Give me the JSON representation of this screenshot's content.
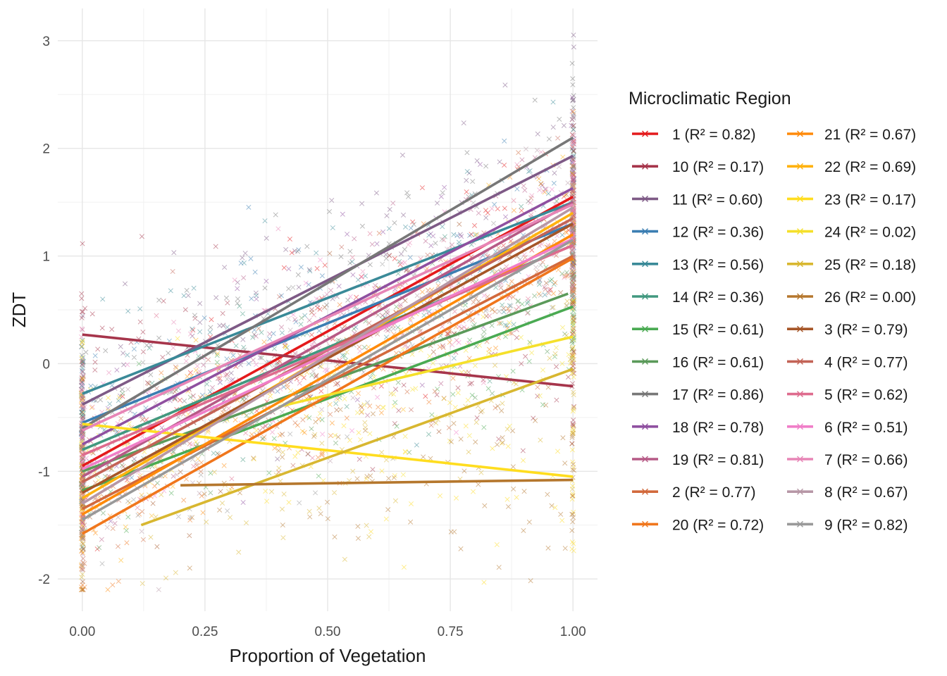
{
  "chart_data": {
    "type": "scatter",
    "title": "",
    "xlabel": "Proportion of Vegetation",
    "ylabel": "ZDT",
    "xlim": [
      -0.05,
      1.05
    ],
    "ylim": [
      -2.3,
      3.3
    ],
    "x_ticks": [
      {
        "value": 0,
        "label": "0.00"
      },
      {
        "value": 0.25,
        "label": "0.25"
      },
      {
        "value": 0.5,
        "label": "0.50"
      },
      {
        "value": 0.75,
        "label": "0.75"
      },
      {
        "value": 1,
        "label": "1.00"
      }
    ],
    "y_ticks": [
      {
        "value": -2,
        "label": "-2"
      },
      {
        "value": -1,
        "label": "-1"
      },
      {
        "value": 0,
        "label": "0"
      },
      {
        "value": 1,
        "label": "1"
      },
      {
        "value": 2,
        "label": "2"
      },
      {
        "value": 3,
        "label": "3"
      }
    ],
    "grid": true,
    "legend_title": "Microclimatic Region",
    "legend_position": "right",
    "marker": "x",
    "series": [
      {
        "name": "1 (R² = 0.82)",
        "color": "#E41A1C",
        "fit": [
          {
            "x": 0,
            "y": -0.95
          },
          {
            "x": 1,
            "y": 1.55
          }
        ]
      },
      {
        "name": "10 (R² = 0.17)",
        "color": "#A6354B",
        "fit": [
          {
            "x": 0,
            "y": 0.27
          },
          {
            "x": 1,
            "y": -0.21
          }
        ]
      },
      {
        "name": "11 (R² = 0.60)",
        "color": "#7E5A86",
        "fit": [
          {
            "x": 0,
            "y": -0.38
          },
          {
            "x": 1,
            "y": 1.93
          }
        ]
      },
      {
        "name": "12 (R² = 0.36)",
        "color": "#3B7EB2",
        "fit": [
          {
            "x": 0,
            "y": -0.55
          },
          {
            "x": 1,
            "y": 1.3
          }
        ]
      },
      {
        "name": "13 (R² = 0.56)",
        "color": "#3A8A98",
        "fit": [
          {
            "x": 0,
            "y": -0.28
          },
          {
            "x": 1,
            "y": 1.5
          }
        ]
      },
      {
        "name": "14 (R² = 0.36)",
        "color": "#41987F",
        "fit": [
          {
            "x": 0,
            "y": -0.8
          },
          {
            "x": 1,
            "y": 1.1
          }
        ]
      },
      {
        "name": "15 (R² = 0.61)",
        "color": "#4AAA52",
        "fit": [
          {
            "x": 0,
            "y": -1.18
          },
          {
            "x": 1,
            "y": 0.53
          }
        ]
      },
      {
        "name": "16 (R² = 0.61)",
        "color": "#5B9A5A",
        "fit": [
          {
            "x": 0,
            "y": -1.0
          },
          {
            "x": 0.99,
            "y": 0.65
          }
        ]
      },
      {
        "name": "17 (R² = 0.86)",
        "color": "#777777",
        "fit": [
          {
            "x": 0,
            "y": -0.6
          },
          {
            "x": 1,
            "y": 2.1
          }
        ]
      },
      {
        "name": "18 (R² = 0.78)",
        "color": "#8F50A0",
        "fit": [
          {
            "x": 0,
            "y": -0.75
          },
          {
            "x": 1,
            "y": 1.63
          }
        ]
      },
      {
        "name": "19 (R² = 0.81)",
        "color": "#B65A86",
        "fit": [
          {
            "x": 0,
            "y": -1.05
          },
          {
            "x": 1,
            "y": 1.5
          }
        ]
      },
      {
        "name": "2 (R² = 0.77)",
        "color": "#D2693C",
        "fit": [
          {
            "x": 0,
            "y": -1.35
          },
          {
            "x": 1,
            "y": 1.0
          }
        ]
      },
      {
        "name": "20 (R² = 0.72)",
        "color": "#F0761C",
        "fit": [
          {
            "x": 0,
            "y": -1.58
          },
          {
            "x": 1,
            "y": 0.98
          }
        ]
      },
      {
        "name": "21 (R² = 0.67)",
        "color": "#FF8A0A",
        "fit": [
          {
            "x": 0,
            "y": -1.4
          },
          {
            "x": 1,
            "y": 1.2
          }
        ]
      },
      {
        "name": "22 (R² = 0.69)",
        "color": "#FFB20F",
        "fit": [
          {
            "x": 0,
            "y": -1.25
          },
          {
            "x": 1,
            "y": 1.4
          }
        ]
      },
      {
        "name": "23 (R² = 0.17)",
        "color": "#FFDD1F",
        "fit": [
          {
            "x": 0,
            "y": -0.56
          },
          {
            "x": 1,
            "y": -1.05
          }
        ]
      },
      {
        "name": "24 (R² = 0.02)",
        "color": "#F5E02A",
        "fit": [
          {
            "x": 0.4,
            "y": -0.4
          },
          {
            "x": 1,
            "y": 0.25
          }
        ]
      },
      {
        "name": "25 (R² = 0.18)",
        "color": "#D8B730",
        "fit": [
          {
            "x": 0.12,
            "y": -1.5
          },
          {
            "x": 1,
            "y": -0.05
          }
        ]
      },
      {
        "name": "26 (R² = 0.00)",
        "color": "#B5772D",
        "fit": [
          {
            "x": 0.2,
            "y": -1.13
          },
          {
            "x": 1,
            "y": -1.08
          }
        ]
      },
      {
        "name": "3 (R² = 0.79)",
        "color": "#A65628",
        "fit": [
          {
            "x": 0,
            "y": -1.2
          },
          {
            "x": 1,
            "y": 1.3
          }
        ]
      },
      {
        "name": "4 (R² = 0.77)",
        "color": "#C36356",
        "fit": [
          {
            "x": 0,
            "y": -1.1
          },
          {
            "x": 1,
            "y": 1.35
          }
        ]
      },
      {
        "name": "5 (R² = 0.62)",
        "color": "#DE6B8E",
        "fit": [
          {
            "x": 0,
            "y": -0.85
          },
          {
            "x": 1,
            "y": 1.1
          }
        ]
      },
      {
        "name": "6 (R² = 0.51)",
        "color": "#F07EC8",
        "fit": [
          {
            "x": 0,
            "y": -0.98
          },
          {
            "x": 1,
            "y": 1.16
          }
        ]
      },
      {
        "name": "7 (R² = 0.66)",
        "color": "#E785B6",
        "fit": [
          {
            "x": 0,
            "y": -0.62
          },
          {
            "x": 1,
            "y": 1.48
          }
        ]
      },
      {
        "name": "8 (R² = 0.67)",
        "color": "#B797A6",
        "fit": [
          {
            "x": 0,
            "y": -1.3
          },
          {
            "x": 1,
            "y": 1.45
          }
        ]
      },
      {
        "name": "9 (R² = 0.82)",
        "color": "#999999",
        "fit": [
          {
            "x": 0,
            "y": -1.45
          },
          {
            "x": 1,
            "y": 1.15
          }
        ]
      }
    ]
  }
}
